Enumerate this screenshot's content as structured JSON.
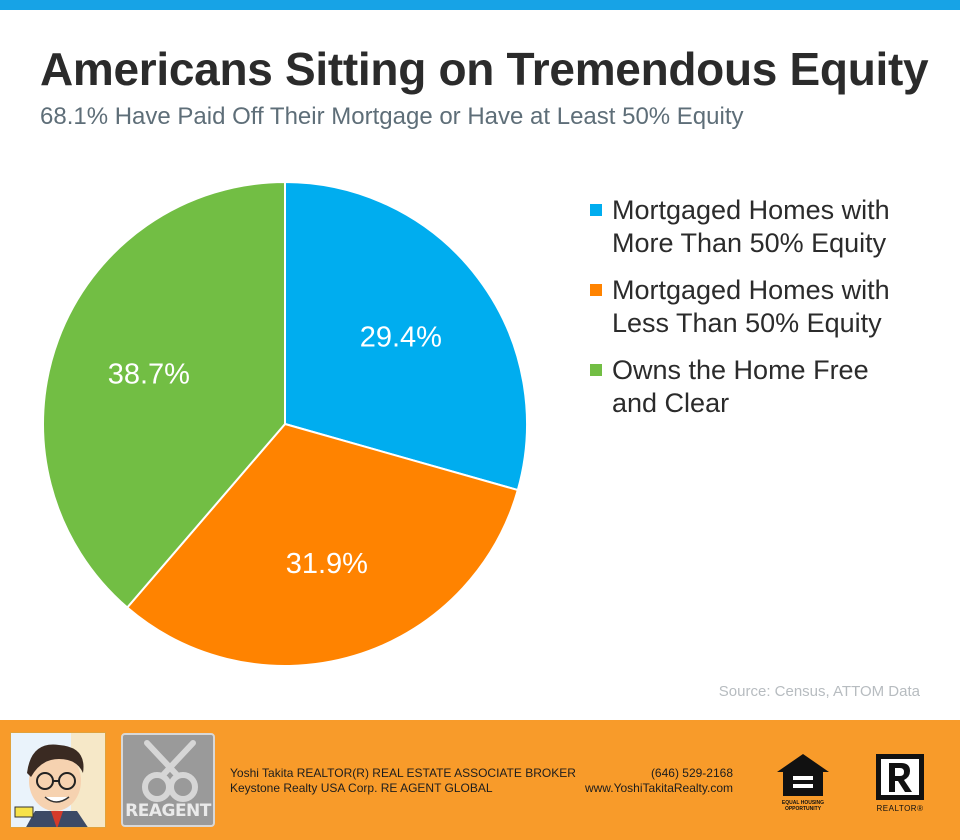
{
  "colors": {
    "top_bar": "#17a3e6",
    "footer": "#f89b2a",
    "blue": "#00adef",
    "orange": "#ff8300",
    "green": "#72be44"
  },
  "header": {
    "title": "Americans Sitting on Tremendous Equity",
    "subtitle": "68.1% Have Paid Off Their Mortgage or Have at Least 50% Equity"
  },
  "chart_data": {
    "type": "pie",
    "title": "Americans Sitting on Tremendous Equity",
    "subtitle": "68.1% Have Paid Off Their Mortgage or Have at Least 50% Equity",
    "categories": [
      "Mortgaged Homes with More Than 50% Equity",
      "Mortgaged Homes with Less Than 50% Equity",
      "Owns the Home Free and Clear"
    ],
    "values": [
      29.4,
      31.9,
      38.7
    ],
    "data_labels": [
      "29.4%",
      "31.9%",
      "38.7%"
    ],
    "colors": [
      "#00adef",
      "#ff8300",
      "#72be44"
    ],
    "legend_position": "right",
    "start_angle": "12 o'clock, clockwise",
    "source": "Source: Census, ATTOM Data"
  },
  "legend": {
    "items": [
      {
        "label": "Mortgaged Homes with More Than 50% Equity",
        "color": "#00adef"
      },
      {
        "label": "Mortgaged Homes with Less Than 50% Equity",
        "color": "#ff8300"
      },
      {
        "label": "Owns the Home Free and Clear",
        "color": "#72be44"
      }
    ]
  },
  "source": "Source: Census, ATTOM Data",
  "footer": {
    "agent_line": "Yoshi Takita REALTOR(R) REAL ESTATE ASSOCIATE BROKER",
    "company_line": "Keystone Realty USA Corp.  RE AGENT GLOBAL",
    "phone": "(646) 529-2168",
    "website": "www.YoshiTakitaRealty.com",
    "reagent_logo_text": "REAGENT",
    "eho_logo_text": "EQUAL HOUSING OPPORTUNITY",
    "realtor_logo_text": "REALTOR®"
  }
}
